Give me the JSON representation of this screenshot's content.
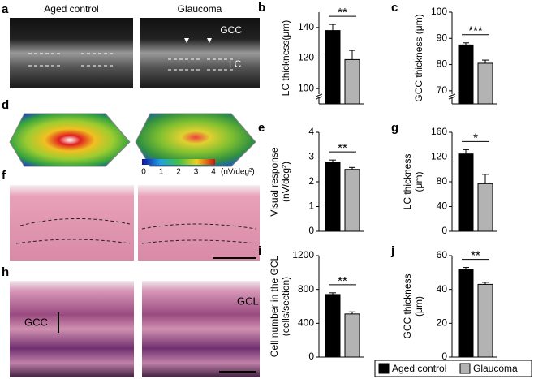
{
  "image_panels": [
    {
      "panel": "a",
      "labels": [
        "Aged control",
        "Glaucoma",
        "GCC",
        "LC"
      ]
    },
    {
      "panel": "d",
      "colorbar": {
        "ticks": [
          "0",
          "1",
          "2",
          "3",
          "4"
        ],
        "unit": "(nV/deg²)"
      }
    },
    {
      "panel": "f"
    },
    {
      "panel": "h",
      "labels": [
        "GCC",
        "GCL"
      ]
    }
  ],
  "series": [
    {
      "name": "Aged control",
      "color": "#000000"
    },
    {
      "name": "Glaucoma",
      "color": "#b3b3b3"
    }
  ],
  "chart_data": [
    {
      "type": "bar",
      "panel": "b",
      "ylabel": [
        "LC thickness(μm)"
      ],
      "values": [
        138,
        119
      ],
      "errors": [
        4,
        6
      ],
      "annotation": "**",
      "ylim": [
        90,
        150
      ],
      "yticks": [
        100,
        120,
        140
      ],
      "axis_break": true
    },
    {
      "type": "bar",
      "panel": "c",
      "ylabel": [
        "GCC thickness (μm)"
      ],
      "values": [
        87.5,
        80.5
      ],
      "errors": [
        0.8,
        1.2
      ],
      "annotation": "***",
      "ylim": [
        65,
        100
      ],
      "yticks": [
        70,
        80,
        90,
        100
      ],
      "axis_break": true
    },
    {
      "type": "bar",
      "panel": "e",
      "ylabel": [
        "Visual response",
        "(nV/deg²)"
      ],
      "values": [
        2.8,
        2.5
      ],
      "errors": [
        0.08,
        0.08
      ],
      "annotation": "**",
      "ylim": [
        0,
        4
      ],
      "yticks": [
        0,
        1,
        2,
        3,
        4
      ],
      "axis_break": false
    },
    {
      "type": "bar",
      "panel": "g",
      "ylabel": [
        "LC thickness",
        "(μm)"
      ],
      "values": [
        125,
        77
      ],
      "errors": [
        7,
        15
      ],
      "annotation": "*",
      "ylim": [
        0,
        160
      ],
      "yticks": [
        0,
        40,
        80,
        120,
        160
      ],
      "axis_break": false
    },
    {
      "type": "bar",
      "panel": "i",
      "ylabel": [
        "Cell number in the GCL",
        "(cells/section)"
      ],
      "values": [
        740,
        510
      ],
      "errors": [
        20,
        25
      ],
      "annotation": "**",
      "ylim": [
        0,
        1200
      ],
      "yticks": [
        0,
        400,
        800,
        1200
      ],
      "axis_break": false
    },
    {
      "type": "bar",
      "panel": "j",
      "ylabel": [
        "GCC thickness",
        "(μm)"
      ],
      "values": [
        52,
        43
      ],
      "errors": [
        1,
        1.2
      ],
      "annotation": "**",
      "ylim": [
        0,
        60
      ],
      "yticks": [
        0,
        20,
        40,
        60
      ],
      "axis_break": false
    }
  ]
}
